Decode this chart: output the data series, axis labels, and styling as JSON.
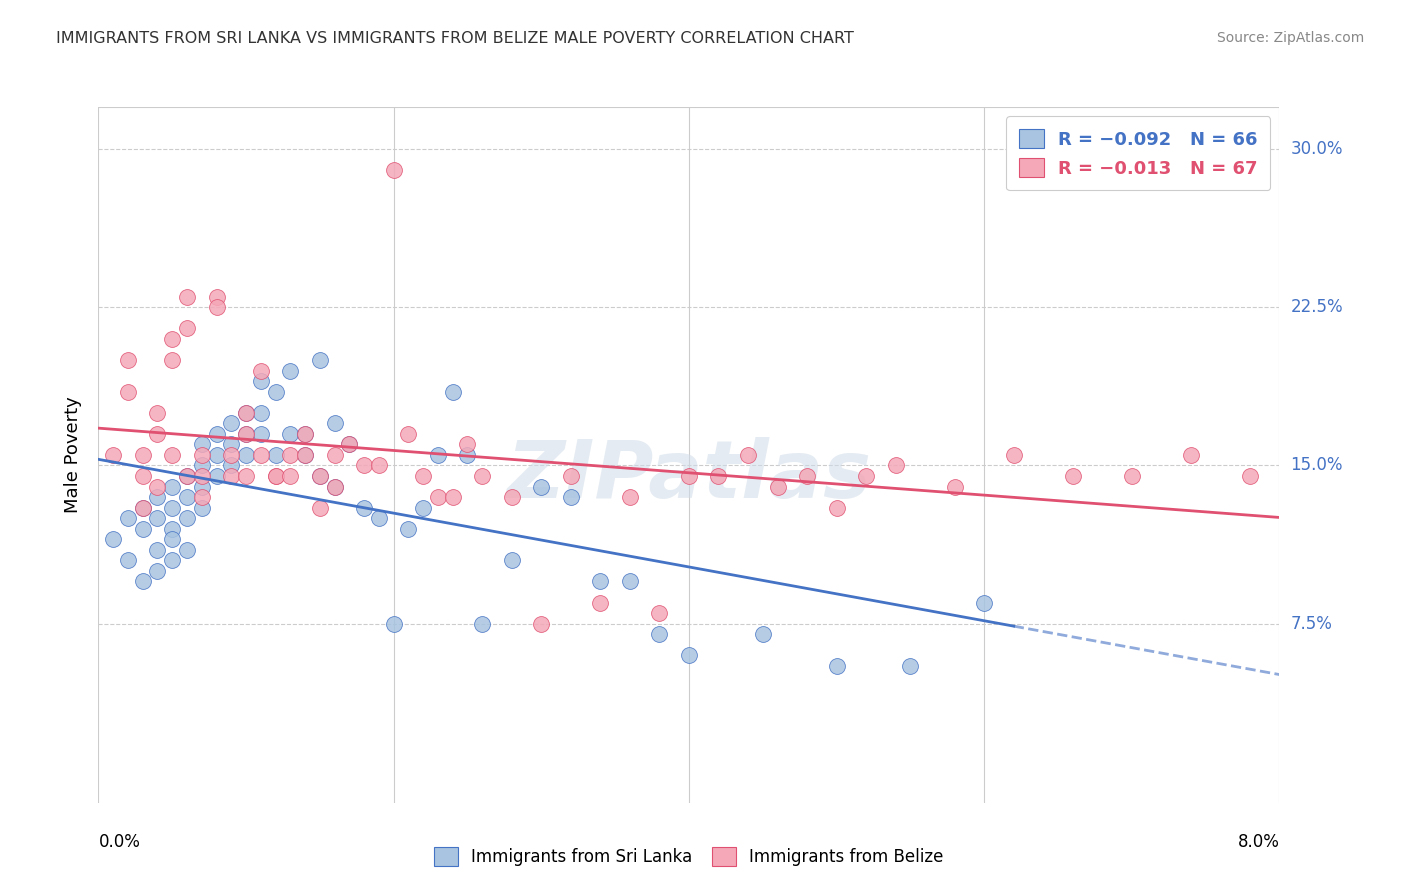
{
  "title": "IMMIGRANTS FROM SRI LANKA VS IMMIGRANTS FROM BELIZE MALE POVERTY CORRELATION CHART",
  "source": "Source: ZipAtlas.com",
  "ylabel": "Male Poverty",
  "xmin": 0.0,
  "xmax": 0.08,
  "ymin": -0.01,
  "ymax": 0.32,
  "sri_lanka_color": "#a8c4e0",
  "belize_color": "#f4a8b8",
  "sri_lanka_line_color": "#4472c4",
  "belize_line_color": "#e05070",
  "legend_label1": "Immigrants from Sri Lanka",
  "legend_label2": "Immigrants from Belize",
  "watermark": "ZIPatlas",
  "ytick_vals": [
    0.075,
    0.15,
    0.225,
    0.3
  ],
  "ytick_labels": [
    "7.5%",
    "15.0%",
    "22.5%",
    "30.0%"
  ],
  "sri_lanka_x": [
    0.001,
    0.002,
    0.002,
    0.003,
    0.003,
    0.003,
    0.004,
    0.004,
    0.004,
    0.004,
    0.005,
    0.005,
    0.005,
    0.005,
    0.005,
    0.006,
    0.006,
    0.006,
    0.006,
    0.007,
    0.007,
    0.007,
    0.007,
    0.008,
    0.008,
    0.008,
    0.009,
    0.009,
    0.009,
    0.01,
    0.01,
    0.01,
    0.011,
    0.011,
    0.011,
    0.012,
    0.012,
    0.013,
    0.013,
    0.014,
    0.014,
    0.015,
    0.015,
    0.016,
    0.016,
    0.017,
    0.018,
    0.019,
    0.02,
    0.021,
    0.022,
    0.023,
    0.024,
    0.025,
    0.026,
    0.028,
    0.03,
    0.032,
    0.034,
    0.036,
    0.038,
    0.04,
    0.045,
    0.05,
    0.055,
    0.06
  ],
  "sri_lanka_y": [
    0.115,
    0.125,
    0.105,
    0.13,
    0.12,
    0.095,
    0.135,
    0.125,
    0.11,
    0.1,
    0.14,
    0.13,
    0.12,
    0.115,
    0.105,
    0.145,
    0.135,
    0.125,
    0.11,
    0.16,
    0.15,
    0.14,
    0.13,
    0.165,
    0.155,
    0.145,
    0.17,
    0.16,
    0.15,
    0.175,
    0.165,
    0.155,
    0.19,
    0.175,
    0.165,
    0.185,
    0.155,
    0.195,
    0.165,
    0.165,
    0.155,
    0.2,
    0.145,
    0.17,
    0.14,
    0.16,
    0.13,
    0.125,
    0.075,
    0.12,
    0.13,
    0.155,
    0.185,
    0.155,
    0.075,
    0.105,
    0.14,
    0.135,
    0.095,
    0.095,
    0.07,
    0.06,
    0.07,
    0.055,
    0.055,
    0.085
  ],
  "belize_x": [
    0.001,
    0.002,
    0.002,
    0.003,
    0.003,
    0.003,
    0.004,
    0.004,
    0.004,
    0.005,
    0.005,
    0.005,
    0.006,
    0.006,
    0.006,
    0.007,
    0.007,
    0.007,
    0.008,
    0.008,
    0.009,
    0.009,
    0.01,
    0.01,
    0.01,
    0.011,
    0.011,
    0.012,
    0.012,
    0.013,
    0.013,
    0.014,
    0.014,
    0.015,
    0.015,
    0.016,
    0.016,
    0.017,
    0.018,
    0.019,
    0.02,
    0.021,
    0.022,
    0.023,
    0.024,
    0.025,
    0.026,
    0.028,
    0.03,
    0.032,
    0.034,
    0.036,
    0.038,
    0.04,
    0.042,
    0.044,
    0.046,
    0.048,
    0.05,
    0.052,
    0.054,
    0.058,
    0.062,
    0.066,
    0.07,
    0.074,
    0.078
  ],
  "belize_y": [
    0.155,
    0.2,
    0.185,
    0.155,
    0.145,
    0.13,
    0.175,
    0.165,
    0.14,
    0.21,
    0.2,
    0.155,
    0.215,
    0.23,
    0.145,
    0.155,
    0.145,
    0.135,
    0.23,
    0.225,
    0.155,
    0.145,
    0.175,
    0.165,
    0.145,
    0.195,
    0.155,
    0.145,
    0.145,
    0.155,
    0.145,
    0.165,
    0.155,
    0.145,
    0.13,
    0.155,
    0.14,
    0.16,
    0.15,
    0.15,
    0.29,
    0.165,
    0.145,
    0.135,
    0.135,
    0.16,
    0.145,
    0.135,
    0.075,
    0.145,
    0.085,
    0.135,
    0.08,
    0.145,
    0.145,
    0.155,
    0.14,
    0.145,
    0.13,
    0.145,
    0.15,
    0.14,
    0.155,
    0.145,
    0.145,
    0.155,
    0.145
  ]
}
